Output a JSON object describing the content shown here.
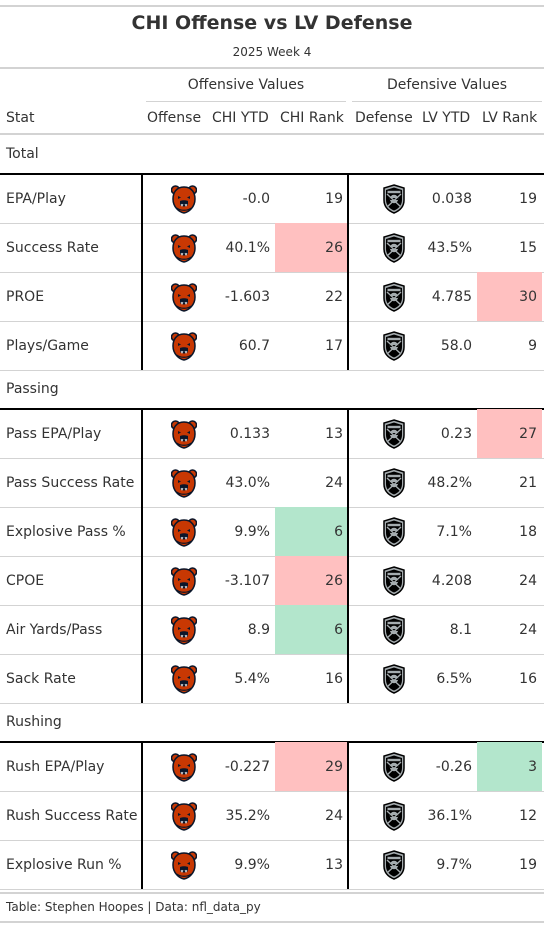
{
  "title": "CHI Offense vs LV Defense",
  "subtitle": "2025 Week 4",
  "group_headers": {
    "offense": "Offensive Values",
    "defense": "Defensive Values"
  },
  "columns": {
    "stat": "Stat",
    "offense": "Offense",
    "chi_ytd": "CHI YTD",
    "chi_rank": "CHI Rank",
    "defense": "Defense",
    "lv_ytd": "LV YTD",
    "lv_rank": "LV Rank"
  },
  "colors": {
    "bad": "#ffc0c0",
    "good": "#b3e6cc",
    "bears_orange": "#c83803",
    "bears_navy": "#0b162a",
    "raiders_black": "#000000",
    "raiders_silver": "#a5acaf"
  },
  "logos": {
    "offense": "bears-logo-icon",
    "defense": "raiders-logo-icon"
  },
  "sections": [
    {
      "name": "Total",
      "rows": [
        {
          "stat": "EPA/Play",
          "chi_ytd": "-0.0",
          "chi_rank": "19",
          "chi_rank_color": "",
          "lv_ytd": "0.038",
          "lv_rank": "19",
          "lv_rank_color": ""
        },
        {
          "stat": "Success Rate",
          "chi_ytd": "40.1%",
          "chi_rank": "26",
          "chi_rank_color": "bad",
          "lv_ytd": "43.5%",
          "lv_rank": "15",
          "lv_rank_color": ""
        },
        {
          "stat": "PROE",
          "chi_ytd": "-1.603",
          "chi_rank": "22",
          "chi_rank_color": "",
          "lv_ytd": "4.785",
          "lv_rank": "30",
          "lv_rank_color": "bad"
        },
        {
          "stat": "Plays/Game",
          "chi_ytd": "60.7",
          "chi_rank": "17",
          "chi_rank_color": "",
          "lv_ytd": "58.0",
          "lv_rank": "9",
          "lv_rank_color": ""
        }
      ]
    },
    {
      "name": "Passing",
      "rows": [
        {
          "stat": "Pass EPA/Play",
          "chi_ytd": "0.133",
          "chi_rank": "13",
          "chi_rank_color": "",
          "lv_ytd": "0.23",
          "lv_rank": "27",
          "lv_rank_color": "bad"
        },
        {
          "stat": "Pass Success Rate",
          "chi_ytd": "43.0%",
          "chi_rank": "24",
          "chi_rank_color": "",
          "lv_ytd": "48.2%",
          "lv_rank": "21",
          "lv_rank_color": ""
        },
        {
          "stat": "Explosive Pass %",
          "chi_ytd": "9.9%",
          "chi_rank": "6",
          "chi_rank_color": "good",
          "lv_ytd": "7.1%",
          "lv_rank": "18",
          "lv_rank_color": ""
        },
        {
          "stat": "CPOE",
          "chi_ytd": "-3.107",
          "chi_rank": "26",
          "chi_rank_color": "bad",
          "lv_ytd": "4.208",
          "lv_rank": "24",
          "lv_rank_color": ""
        },
        {
          "stat": "Air Yards/Pass",
          "chi_ytd": "8.9",
          "chi_rank": "6",
          "chi_rank_color": "good",
          "lv_ytd": "8.1",
          "lv_rank": "24",
          "lv_rank_color": ""
        },
        {
          "stat": "Sack Rate",
          "chi_ytd": "5.4%",
          "chi_rank": "16",
          "chi_rank_color": "",
          "lv_ytd": "6.5%",
          "lv_rank": "16",
          "lv_rank_color": ""
        }
      ]
    },
    {
      "name": "Rushing",
      "rows": [
        {
          "stat": "Rush EPA/Play",
          "chi_ytd": "-0.227",
          "chi_rank": "29",
          "chi_rank_color": "bad",
          "lv_ytd": "-0.26",
          "lv_rank": "3",
          "lv_rank_color": "good"
        },
        {
          "stat": "Rush Success Rate",
          "chi_ytd": "35.2%",
          "chi_rank": "24",
          "chi_rank_color": "",
          "lv_ytd": "36.1%",
          "lv_rank": "12",
          "lv_rank_color": ""
        },
        {
          "stat": "Explosive Run %",
          "chi_ytd": "9.9%",
          "chi_rank": "13",
          "chi_rank_color": "",
          "lv_ytd": "9.7%",
          "lv_rank": "19",
          "lv_rank_color": ""
        }
      ]
    }
  ],
  "footer": "Table: Stephen Hoopes | Data: nfl_data_py"
}
